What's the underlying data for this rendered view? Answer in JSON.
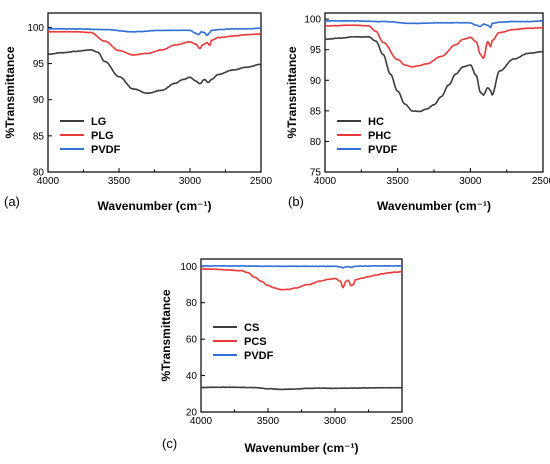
{
  "chart_data": [
    {
      "type": "line",
      "panel_label": "(a)",
      "xlabel": "Wavenumber (cm⁻¹)",
      "ylabel": "%Transmittance",
      "xlim": [
        4000,
        2500
      ],
      "ylim": [
        80,
        102
      ],
      "xticks": [
        4000,
        3500,
        3000,
        2500
      ],
      "yticks": [
        80,
        85,
        90,
        95,
        100
      ],
      "legend_position": "bottom-left",
      "series": [
        {
          "name": "LG",
          "color": "#3c3c3c",
          "x": [
            4000,
            3900,
            3800,
            3700,
            3650,
            3600,
            3500,
            3400,
            3300,
            3200,
            3100,
            3050,
            3000,
            2960,
            2930,
            2900,
            2870,
            2850,
            2800,
            2700,
            2600,
            2500
          ],
          "y": [
            96.3,
            96.5,
            96.7,
            96.9,
            96.6,
            95.3,
            93.2,
            91.5,
            90.9,
            91.3,
            92.3,
            92.8,
            93.1,
            92.6,
            92.2,
            92.8,
            92.4,
            92.8,
            93.5,
            94.1,
            94.5,
            94.9
          ]
        },
        {
          "name": "PLG",
          "color": "#e83a3a",
          "x": [
            4000,
            3800,
            3700,
            3600,
            3500,
            3400,
            3300,
            3200,
            3100,
            3000,
            2960,
            2930,
            2910,
            2880,
            2860,
            2850,
            2800,
            2700,
            2600,
            2500
          ],
          "y": [
            99.4,
            99.4,
            99.3,
            98.1,
            96.8,
            96.2,
            96.4,
            96.9,
            97.6,
            98.0,
            97.7,
            97.1,
            97.6,
            97.9,
            97.5,
            98.2,
            98.6,
            98.8,
            99.0,
            99.1
          ]
        },
        {
          "name": "PVDF",
          "color": "#2f6fd6",
          "x": [
            4000,
            3800,
            3600,
            3400,
            3200,
            3000,
            2960,
            2940,
            2920,
            2900,
            2880,
            2860,
            2850,
            2800,
            2700,
            2600,
            2500
          ],
          "y": [
            99.8,
            99.8,
            99.7,
            99.4,
            99.6,
            99.6,
            99.2,
            99.0,
            99.4,
            99.3,
            98.9,
            99.3,
            99.6,
            99.7,
            99.8,
            99.8,
            99.9
          ]
        }
      ]
    },
    {
      "type": "line",
      "panel_label": "(b)",
      "xlabel": "Wavenumber (cm⁻¹)",
      "ylabel": "%Transmittance",
      "xlim": [
        4000,
        2500
      ],
      "ylim": [
        75,
        101
      ],
      "xticks": [
        4000,
        3500,
        3000,
        2500
      ],
      "yticks": [
        75,
        80,
        85,
        90,
        95,
        100
      ],
      "legend_position": "bottom-left",
      "series": [
        {
          "name": "HC",
          "color": "#3c3c3c",
          "x": [
            4000,
            3900,
            3800,
            3700,
            3650,
            3600,
            3550,
            3500,
            3450,
            3400,
            3350,
            3300,
            3250,
            3200,
            3150,
            3100,
            3050,
            3000,
            2960,
            2930,
            2910,
            2880,
            2860,
            2850,
            2800,
            2700,
            2600,
            2500
          ],
          "y": [
            96.7,
            96.9,
            97.1,
            97.1,
            96.4,
            94.2,
            91.0,
            88.2,
            86.1,
            85.0,
            84.9,
            85.3,
            86.0,
            87.3,
            89.2,
            91.0,
            92.2,
            92.5,
            90.8,
            88.0,
            87.6,
            88.8,
            88.3,
            87.6,
            91.5,
            93.5,
            94.4,
            94.7
          ]
        },
        {
          "name": "PHC",
          "color": "#e83a3a",
          "x": [
            4000,
            3800,
            3700,
            3650,
            3600,
            3500,
            3450,
            3400,
            3350,
            3300,
            3200,
            3100,
            3050,
            3000,
            2960,
            2930,
            2910,
            2880,
            2860,
            2850,
            2800,
            2700,
            2600,
            2500
          ],
          "y": [
            98.9,
            99.0,
            98.9,
            98.0,
            96.2,
            93.4,
            92.5,
            92.2,
            92.4,
            92.7,
            93.9,
            95.8,
            96.7,
            97.0,
            96.3,
            94.2,
            93.6,
            96.3,
            95.5,
            96.5,
            97.8,
            98.3,
            98.5,
            98.6
          ]
        },
        {
          "name": "PVDF",
          "color": "#2f6fd6",
          "x": [
            4000,
            3800,
            3600,
            3400,
            3200,
            3000,
            2960,
            2930,
            2910,
            2880,
            2860,
            2850,
            2800,
            2700,
            2600,
            2500
          ],
          "y": [
            99.7,
            99.7,
            99.6,
            99.3,
            99.4,
            99.4,
            99.0,
            98.8,
            99.2,
            99.0,
            98.6,
            99.3,
            99.5,
            99.6,
            99.6,
            99.7
          ]
        }
      ]
    },
    {
      "type": "line",
      "panel_label": "(c)",
      "xlabel": "Wavenumber (cm⁻¹)",
      "ylabel": "%Transmittance",
      "xlim": [
        4000,
        2500
      ],
      "ylim": [
        20,
        104
      ],
      "xticks": [
        4000,
        3500,
        3000,
        2500
      ],
      "yticks": [
        20,
        40,
        60,
        80,
        100
      ],
      "legend_position": "left",
      "series": [
        {
          "name": "CS",
          "color": "#3c3c3c",
          "x": [
            4000,
            3800,
            3600,
            3500,
            3400,
            3300,
            3200,
            3100,
            3000,
            2900,
            2800,
            2700,
            2600,
            2500
          ],
          "y": [
            33.5,
            33.6,
            33.4,
            32.8,
            32.4,
            32.6,
            33.0,
            33.1,
            33.0,
            33.1,
            33.2,
            33.3,
            33.3,
            33.3
          ]
        },
        {
          "name": "PCS",
          "color": "#e83a3a",
          "x": [
            4000,
            3900,
            3800,
            3700,
            3650,
            3600,
            3550,
            3500,
            3450,
            3400,
            3350,
            3300,
            3200,
            3100,
            3050,
            3000,
            2960,
            2940,
            2920,
            2900,
            2880,
            2860,
            2850,
            2800,
            2750,
            2700,
            2650,
            2600,
            2550,
            2500
          ],
          "y": [
            98.5,
            98.4,
            98.0,
            97.6,
            96.5,
            94.0,
            91.8,
            89.5,
            88.0,
            87.2,
            87.3,
            88.0,
            90.0,
            92.0,
            92.8,
            93.3,
            91.8,
            88.2,
            91.6,
            92.3,
            89.3,
            90.2,
            92.5,
            93.5,
            94.3,
            95.1,
            95.8,
            96.4,
            96.8,
            97.0
          ]
        },
        {
          "name": "PVDF",
          "color": "#2f6fd6",
          "x": [
            4000,
            3800,
            3600,
            3400,
            3200,
            3000,
            2960,
            2940,
            2920,
            2900,
            2880,
            2860,
            2850,
            2800,
            2700,
            2600,
            2500
          ],
          "y": [
            100.2,
            100.2,
            100.1,
            100.0,
            100.0,
            100.0,
            99.6,
            99.2,
            99.7,
            99.8,
            99.5,
            99.8,
            100.0,
            100.1,
            100.2,
            100.2,
            100.2
          ]
        }
      ]
    }
  ]
}
